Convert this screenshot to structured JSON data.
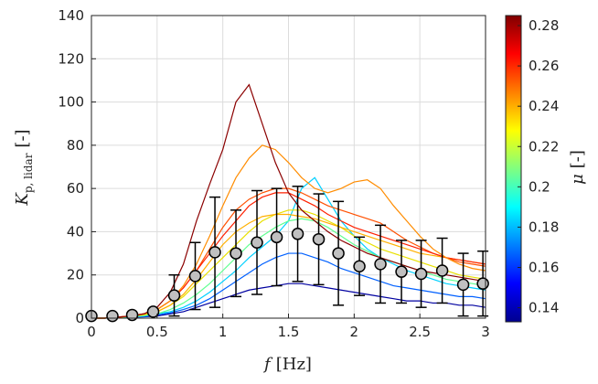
{
  "chart_data": {
    "type": "line",
    "x": [
      0,
      0.1,
      0.2,
      0.3,
      0.4,
      0.5,
      0.6,
      0.7,
      0.8,
      0.9,
      1.0,
      1.1,
      1.2,
      1.3,
      1.4,
      1.5,
      1.6,
      1.7,
      1.8,
      1.9,
      2.0,
      2.1,
      2.2,
      2.3,
      2.4,
      2.5,
      2.6,
      2.7,
      2.8,
      2.9,
      3.0
    ],
    "series": [
      {
        "color": "#0000a0",
        "values": [
          0,
          0,
          0.2,
          0.4,
          0.6,
          1,
          2,
          3,
          5,
          7,
          9,
          11,
          13,
          14,
          15,
          16,
          16,
          15,
          14,
          13,
          12,
          11,
          10,
          9,
          8,
          8,
          7,
          7,
          6,
          6,
          5
        ]
      },
      {
        "color": "#0060ff",
        "values": [
          0,
          0,
          0.2,
          0.5,
          0.8,
          1.5,
          2.5,
          4,
          6,
          9,
          13,
          17,
          21,
          25,
          28,
          30,
          30,
          28,
          26,
          23,
          21,
          19,
          17,
          15,
          14,
          13,
          12,
          11,
          10,
          10,
          9
        ]
      },
      {
        "color": "#00d0ff",
        "values": [
          0,
          0,
          0.2,
          0.5,
          1,
          2,
          3,
          5,
          8,
          12,
          17,
          22,
          28,
          33,
          38,
          45,
          60,
          65,
          55,
          45,
          38,
          32,
          28,
          25,
          22,
          20,
          18,
          16,
          15,
          14,
          13
        ]
      },
      {
        "color": "#60ff90",
        "values": [
          0,
          0,
          0.3,
          0.8,
          1.2,
          2,
          4,
          7,
          11,
          16,
          22,
          28,
          34,
          38,
          42,
          45,
          46,
          45,
          42,
          38,
          34,
          31,
          28,
          26,
          24,
          22,
          20,
          18,
          17,
          16,
          15
        ]
      },
      {
        "color": "#e8e000",
        "values": [
          0,
          0,
          0.3,
          1,
          1.5,
          3,
          6,
          10,
          16,
          22,
          28,
          34,
          40,
          45,
          48,
          50,
          50,
          48,
          45,
          42,
          38,
          35,
          32,
          30,
          28,
          26,
          24,
          22,
          20,
          19,
          18
        ]
      },
      {
        "color": "#ffb000",
        "values": [
          0,
          0,
          0.4,
          1,
          2,
          3,
          6,
          11,
          18,
          26,
          34,
          40,
          44,
          47,
          48,
          48,
          47,
          46,
          44,
          42,
          40,
          38,
          36,
          34,
          32,
          30,
          29,
          28,
          27,
          26,
          25
        ]
      },
      {
        "color": "#ff5000",
        "values": [
          0,
          0,
          0.4,
          1,
          2,
          4,
          8,
          14,
          22,
          32,
          42,
          50,
          55,
          58,
          60,
          60,
          58,
          55,
          52,
          50,
          48,
          46,
          44,
          40,
          36,
          33,
          30,
          28,
          26,
          25,
          24
        ]
      },
      {
        "color": "#ff2000",
        "values": [
          0,
          0,
          0.5,
          1,
          2,
          4,
          8,
          14,
          22,
          30,
          38,
          45,
          52,
          56,
          58,
          58,
          55,
          52,
          48,
          45,
          42,
          40,
          38,
          36,
          34,
          32,
          30,
          28,
          27,
          26,
          25
        ]
      },
      {
        "color": "#ff8c00",
        "values": [
          0,
          0,
          0.5,
          1,
          2,
          4,
          8,
          15,
          25,
          38,
          52,
          65,
          74,
          80,
          78,
          72,
          65,
          60,
          58,
          60,
          63,
          64,
          60,
          52,
          45,
          38,
          32,
          28,
          25,
          23,
          22
        ]
      },
      {
        "color": "#8b0000",
        "values": [
          0,
          0,
          0.5,
          1,
          2,
          5,
          12,
          25,
          45,
          62,
          78,
          100,
          108,
          90,
          72,
          58,
          50,
          45,
          40,
          36,
          33,
          30,
          28,
          26,
          24,
          22,
          21,
          20,
          19,
          18,
          17
        ]
      }
    ],
    "errorbars": {
      "marker_color": "#c0c0c0",
      "x": [
        0,
        0.16,
        0.31,
        0.47,
        0.63,
        0.79,
        0.94,
        1.1,
        1.26,
        1.41,
        1.57,
        1.73,
        1.88,
        2.04,
        2.2,
        2.36,
        2.51,
        2.67,
        2.83,
        2.98
      ],
      "values": [
        1,
        1,
        1.5,
        3,
        10.5,
        19.5,
        30.5,
        30,
        35,
        37.5,
        39,
        36.5,
        30,
        24,
        25,
        21.5,
        20.5,
        22,
        15.5,
        16
      ],
      "errors": [
        0,
        0,
        0.5,
        1,
        9.5,
        15.5,
        25.5,
        20,
        24,
        22.5,
        22,
        21,
        24,
        13.5,
        18,
        14.5,
        15.5,
        15,
        14.5,
        15
      ]
    },
    "xlim": [
      0,
      3
    ],
    "xticks": [
      0,
      0.5,
      1,
      1.5,
      2,
      2.5,
      3
    ],
    "ylim": [
      0,
      140
    ],
    "yticks": [
      0,
      20,
      40,
      60,
      80,
      100,
      120,
      140
    ],
    "grid": true,
    "xlabel": {
      "main": "f",
      "unit": "[Hz]"
    },
    "ylabel": {
      "main": "K",
      "sub": "p, lidar",
      "unit": "[-]"
    },
    "colorbar": {
      "label": {
        "main": "μ",
        "unit": "[-]"
      },
      "lim": [
        0.133,
        0.285
      ],
      "ticks": [
        0.14,
        0.16,
        0.18,
        0.2,
        0.22,
        0.24,
        0.26,
        0.28
      ],
      "colors": [
        "#00008f",
        "#0000ff",
        "#0080ff",
        "#00ffff",
        "#80ff80",
        "#ffff00",
        "#ff8000",
        "#ff0000",
        "#800000"
      ]
    }
  }
}
